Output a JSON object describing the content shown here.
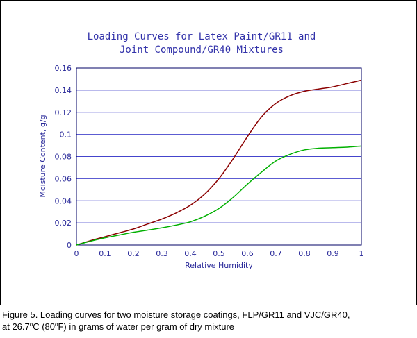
{
  "chart_data": {
    "type": "line",
    "title": [
      "Loading Curves for Latex Paint/GR11 and",
      "Joint Compound/GR40 Mixtures"
    ],
    "xlabel": "Relative Humidity",
    "ylabel": "Moisture Content, g/g",
    "xlim": [
      0,
      1
    ],
    "ylim": [
      0,
      0.16
    ],
    "x_ticks": [
      "0",
      "0.1",
      "0.2",
      "0.3",
      "0.4",
      "0.5",
      "0.6",
      "0.7",
      "0.8",
      "0.9",
      "1"
    ],
    "y_ticks": [
      "0",
      "0.02",
      "0.04",
      "0.06",
      "0.08",
      "0.1",
      "0.12",
      "0.14",
      "0.16"
    ],
    "grid": "horizontal",
    "legend": "none",
    "series": [
      {
        "color": "#8b0000",
        "x": [
          0,
          0.05,
          0.1,
          0.15,
          0.2,
          0.25,
          0.3,
          0.35,
          0.4,
          0.45,
          0.5,
          0.55,
          0.6,
          0.65,
          0.7,
          0.75,
          0.8,
          0.85,
          0.9,
          0.95,
          1.0
        ],
        "y": [
          0,
          0.004,
          0.0075,
          0.011,
          0.0145,
          0.019,
          0.0235,
          0.029,
          0.036,
          0.046,
          0.06,
          0.078,
          0.098,
          0.116,
          0.128,
          0.135,
          0.139,
          0.141,
          0.143,
          0.146,
          0.149
        ]
      },
      {
        "color": "#00b000",
        "x": [
          0,
          0.05,
          0.1,
          0.15,
          0.2,
          0.25,
          0.3,
          0.35,
          0.4,
          0.45,
          0.5,
          0.55,
          0.6,
          0.65,
          0.7,
          0.75,
          0.8,
          0.85,
          0.9,
          0.95,
          1.0
        ],
        "y": [
          0,
          0.0035,
          0.0065,
          0.009,
          0.0115,
          0.0135,
          0.0155,
          0.018,
          0.021,
          0.026,
          0.033,
          0.043,
          0.055,
          0.066,
          0.076,
          0.082,
          0.086,
          0.0875,
          0.088,
          0.0885,
          0.0895
        ]
      }
    ]
  },
  "caption": {
    "line1": "Figure 5.  Loading curves for two moisture storage coatings, FLP/GR11 and VJC/GR40,",
    "line2_part1": "at 26.7",
    "line2_deg1": "o",
    "line2_part2": "C (80",
    "line2_deg2": "o",
    "line2_part3": "F) in grams of water per gram of dry mixture"
  },
  "colors": {
    "frame": "#000000",
    "plot_border": "#000066",
    "grid": "#4444cc",
    "title": "#3333aa",
    "text": "#2a2a9a"
  }
}
